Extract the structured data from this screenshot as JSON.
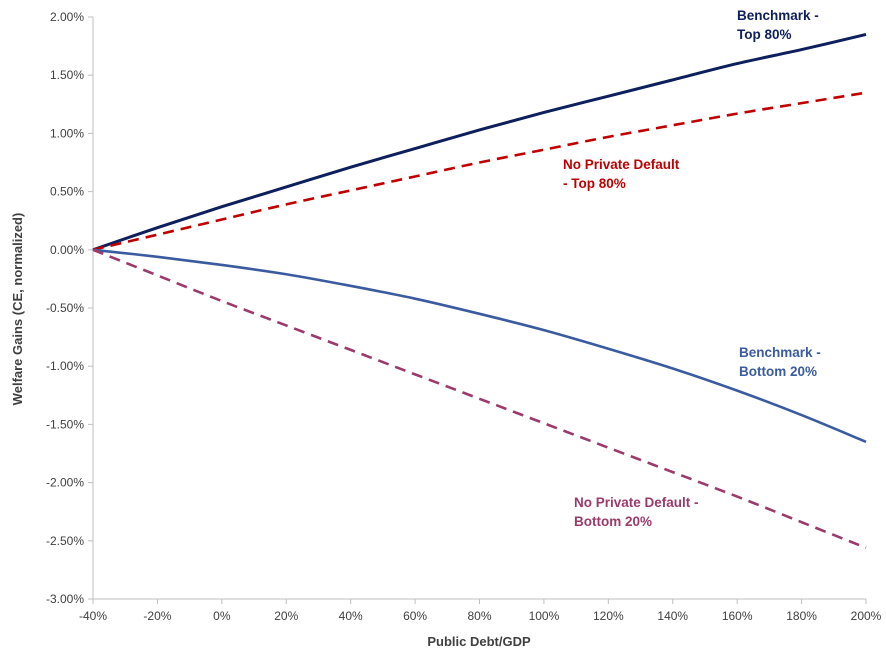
{
  "chart_data": {
    "type": "line",
    "xlabel": "Public Debt/GDP",
    "ylabel": "Welfare Gains (CE, normalized)",
    "xlim": [
      -40,
      200
    ],
    "ylim": [
      -3.0,
      2.0
    ],
    "x_ticks": [
      "-40%",
      "-20%",
      "0%",
      "20%",
      "40%",
      "60%",
      "80%",
      "100%",
      "120%",
      "140%",
      "160%",
      "180%",
      "200%"
    ],
    "y_ticks": [
      "2.00%",
      "1.50%",
      "1.00%",
      "0.50%",
      "0.00%",
      "-0.50%",
      "-1.00%",
      "-1.50%",
      "-2.00%",
      "-2.50%",
      "-3.00%"
    ],
    "grid": false,
    "x": [
      -40,
      -20,
      0,
      20,
      40,
      60,
      80,
      100,
      120,
      140,
      160,
      180,
      200
    ],
    "series": [
      {
        "label_lines": [
          "Benchmark -",
          "Top 80%"
        ],
        "color": "#0d1f5c",
        "dash": "solid",
        "values": [
          0.0,
          0.19,
          0.37,
          0.54,
          0.71,
          0.87,
          1.03,
          1.18,
          1.32,
          1.46,
          1.6,
          1.72,
          1.85
        ]
      },
      {
        "label_lines": [
          "No Private Default",
          "- Top 80%"
        ],
        "color": "#c00000",
        "dash": "dashed",
        "values": [
          0.0,
          0.13,
          0.26,
          0.39,
          0.51,
          0.63,
          0.75,
          0.86,
          0.97,
          1.07,
          1.17,
          1.26,
          1.35
        ]
      },
      {
        "label_lines": [
          "Benchmark -",
          "Bottom 20%"
        ],
        "color": "#3a5ba0",
        "dash": "solid",
        "values": [
          0.0,
          -0.06,
          -0.13,
          -0.21,
          -0.31,
          -0.42,
          -0.55,
          -0.69,
          -0.85,
          -1.02,
          -1.21,
          -1.42,
          -1.65
        ]
      },
      {
        "label_lines": [
          "No Private Default  -",
          "Bottom 20%"
        ],
        "color": "#9b3a6b",
        "dash": "dashed",
        "values": [
          0.0,
          -0.22,
          -0.44,
          -0.65,
          -0.86,
          -1.07,
          -1.28,
          -1.49,
          -1.7,
          -1.91,
          -2.12,
          -2.34,
          -2.56
        ]
      }
    ]
  }
}
